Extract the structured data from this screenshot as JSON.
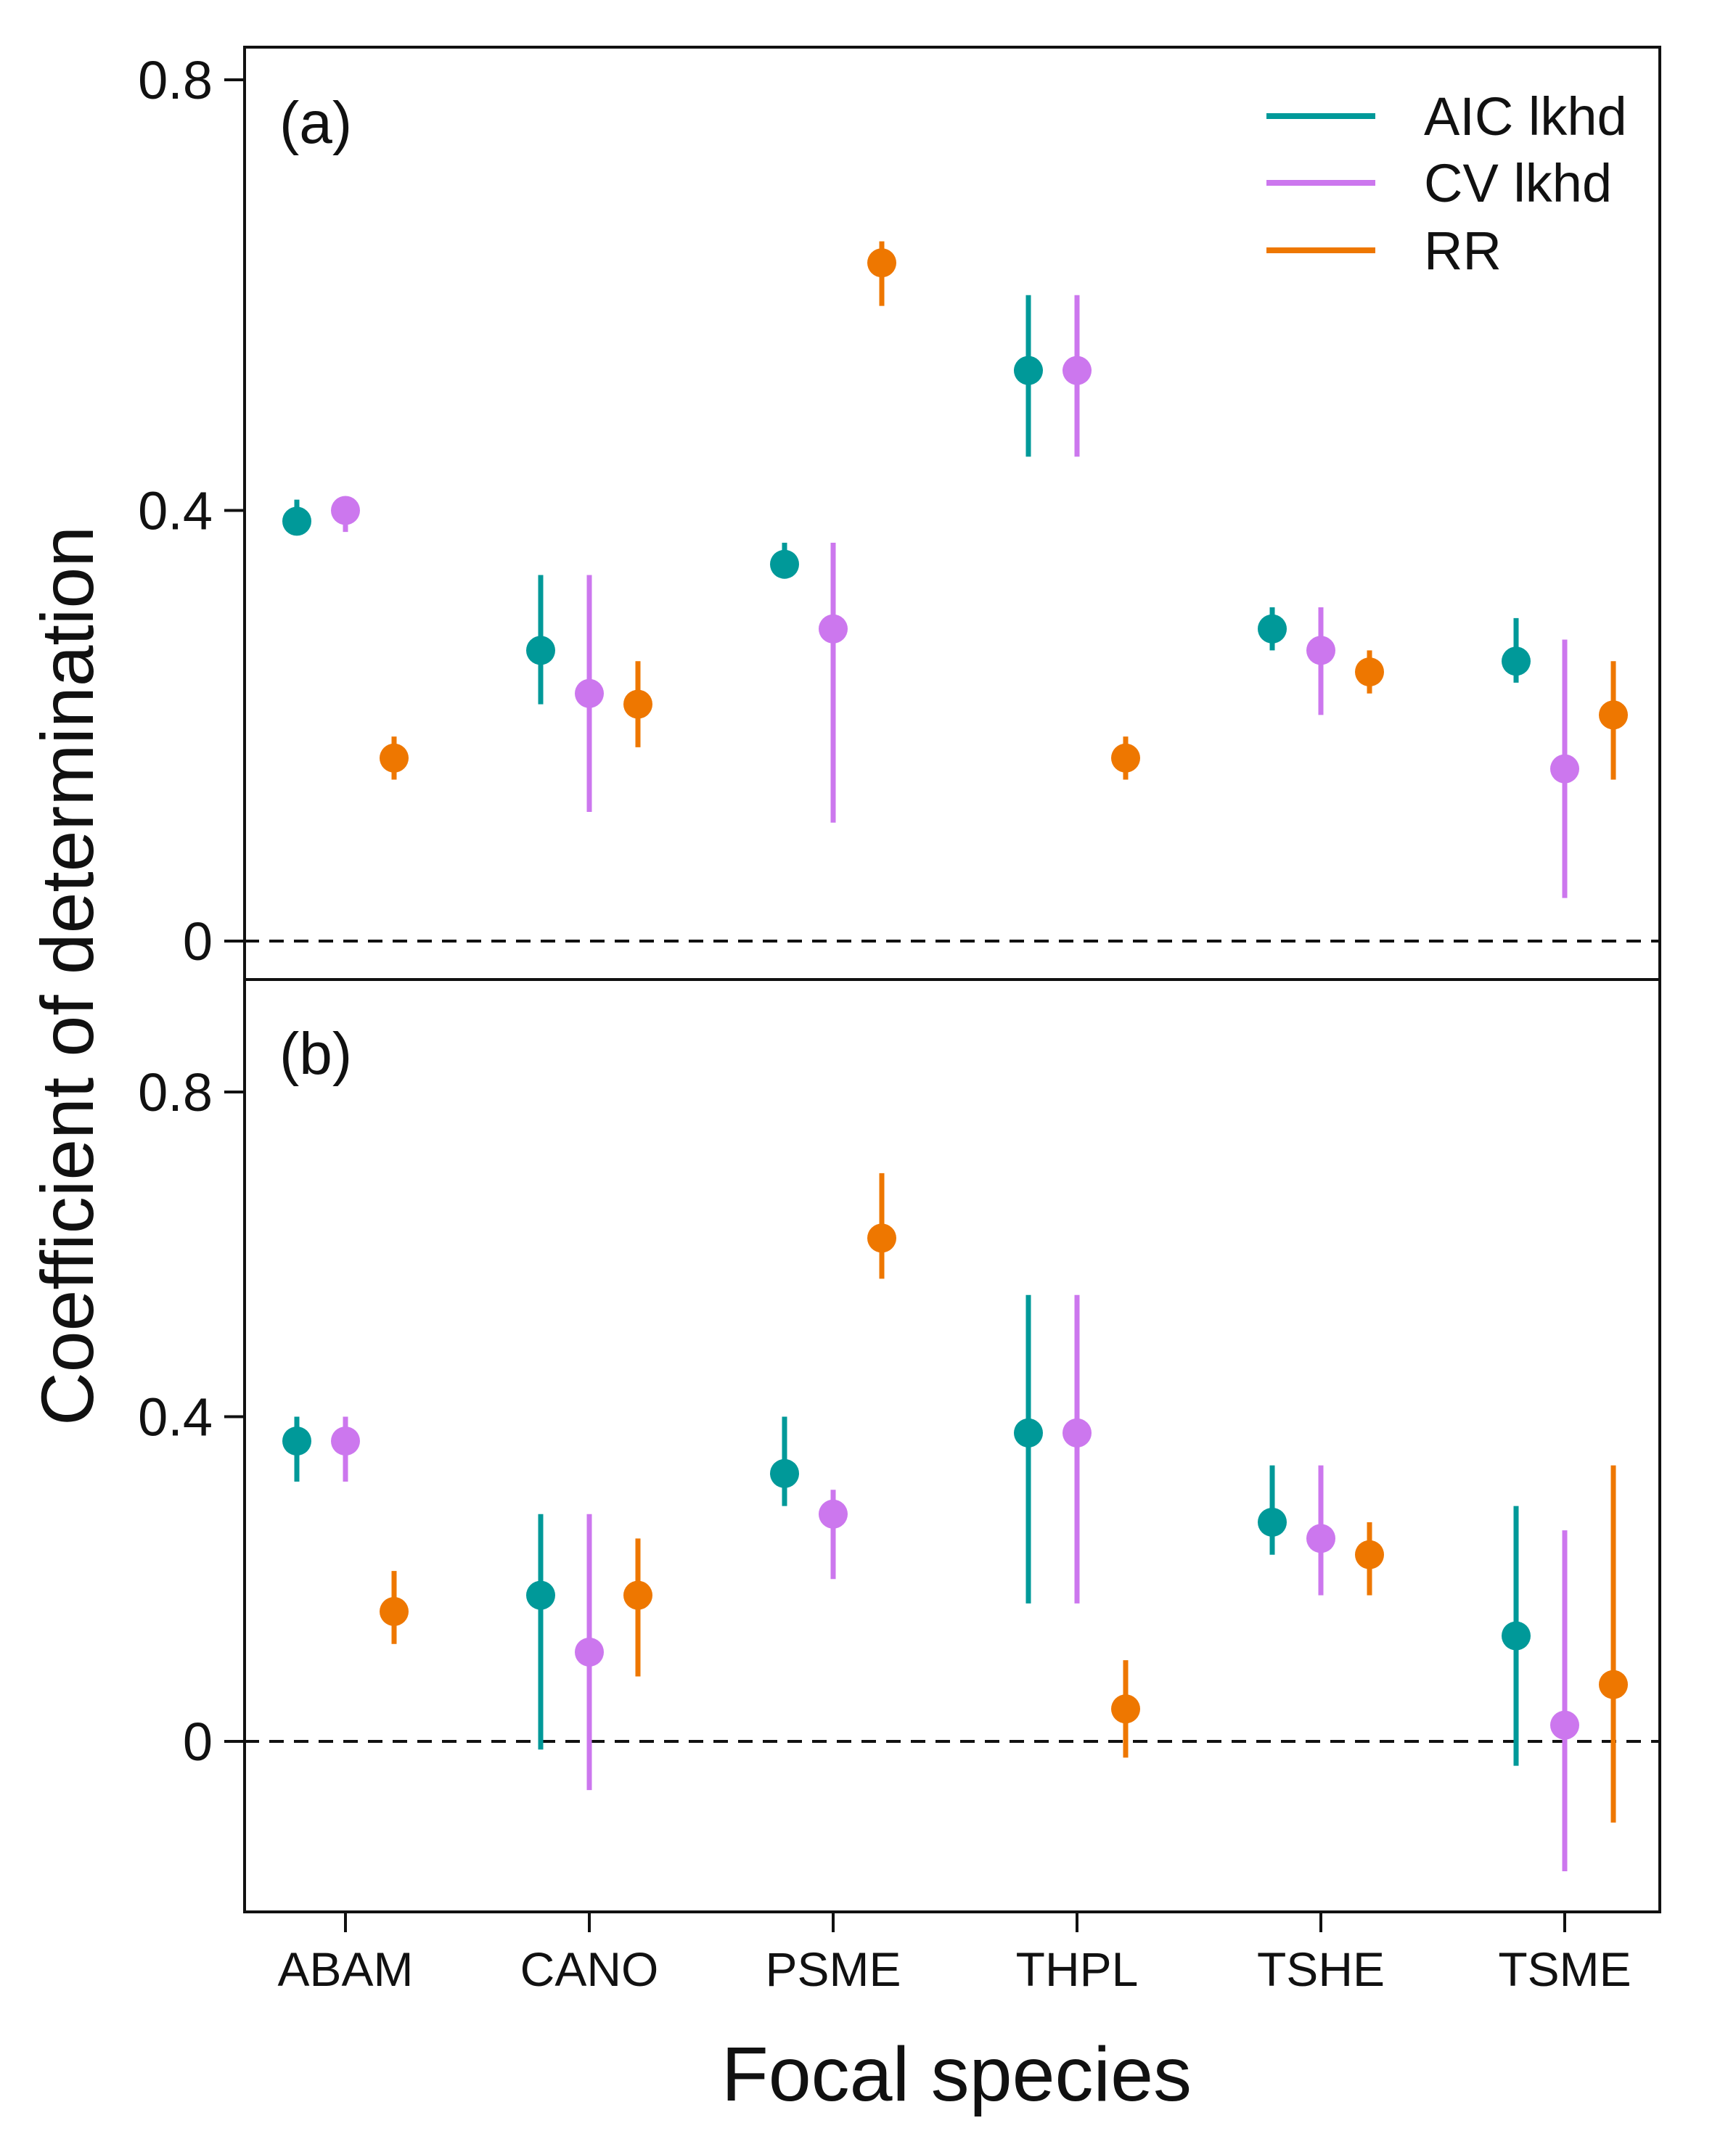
{
  "chart_data": {
    "type": "errorbar",
    "xlabel": "Focal species",
    "ylabel": "Coefficient of determination",
    "categories": [
      "ABAM",
      "CANO",
      "PSME",
      "THPL",
      "TSHE",
      "TSME"
    ],
    "legend": {
      "position": "top-right",
      "entries": [
        {
          "name": "AIC lkhd",
          "color": "#009999"
        },
        {
          "name": "CV lkhd",
          "color": "#cc77ee"
        },
        {
          "name": "RR",
          "color": "#ee7700"
        }
      ]
    },
    "reference_line": {
      "y": 0,
      "style": "dashed"
    },
    "panels": [
      {
        "label": "(a)",
        "ylim": [
          -0.03,
          0.83
        ],
        "yticks": [
          0,
          0.4,
          0.8
        ],
        "ytick_labels": [
          "0",
          "0.4",
          "0.8"
        ],
        "series": [
          {
            "name": "AIC lkhd",
            "values": [
              0.39,
              0.27,
              0.35,
              0.53,
              0.29,
              0.26
            ],
            "lower": [
              0.38,
              0.22,
              0.34,
              0.45,
              0.27,
              0.24
            ],
            "upper": [
              0.41,
              0.34,
              0.37,
              0.6,
              0.31,
              0.3
            ]
          },
          {
            "name": "CV lkhd",
            "values": [
              0.4,
              0.23,
              0.29,
              0.53,
              0.27,
              0.16
            ],
            "lower": [
              0.38,
              0.12,
              0.11,
              0.45,
              0.21,
              0.04
            ],
            "upper": [
              0.41,
              0.34,
              0.37,
              0.6,
              0.31,
              0.28
            ]
          },
          {
            "name": "RR",
            "values": [
              0.17,
              0.22,
              0.63,
              0.17,
              0.25,
              0.21
            ],
            "lower": [
              0.15,
              0.18,
              0.59,
              0.15,
              0.23,
              0.15
            ],
            "upper": [
              0.19,
              0.26,
              0.65,
              0.19,
              0.27,
              0.26
            ]
          }
        ]
      },
      {
        "label": "(b)",
        "ylim": [
          -0.2,
          0.93
        ],
        "yticks": [
          0,
          0.4,
          0.8
        ],
        "ytick_labels": [
          "0",
          "0.4",
          "0.8"
        ],
        "series": [
          {
            "name": "AIC lkhd",
            "values": [
              0.37,
              0.18,
              0.33,
              0.38,
              0.27,
              0.13
            ],
            "lower": [
              0.32,
              -0.01,
              0.29,
              0.17,
              0.23,
              -0.03
            ],
            "upper": [
              0.4,
              0.28,
              0.4,
              0.55,
              0.34,
              0.29
            ]
          },
          {
            "name": "CV lkhd",
            "values": [
              0.37,
              0.11,
              0.28,
              0.38,
              0.25,
              0.02
            ],
            "lower": [
              0.32,
              -0.06,
              0.2,
              0.17,
              0.18,
              -0.16
            ],
            "upper": [
              0.4,
              0.28,
              0.31,
              0.55,
              0.34,
              0.26
            ]
          },
          {
            "name": "RR",
            "values": [
              0.16,
              0.18,
              0.62,
              0.04,
              0.23,
              0.07
            ],
            "lower": [
              0.12,
              0.08,
              0.57,
              -0.02,
              0.18,
              -0.1
            ],
            "upper": [
              0.21,
              0.25,
              0.7,
              0.1,
              0.27,
              0.34
            ]
          }
        ]
      }
    ]
  }
}
